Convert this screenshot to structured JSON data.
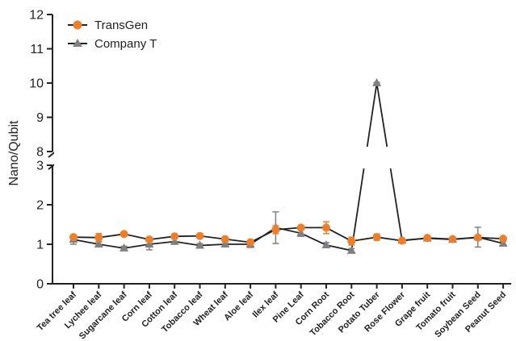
{
  "chart_data": {
    "type": "line",
    "ylabel": "Nano/Qubit",
    "xlabel": "",
    "title": "",
    "axis_break": [
      3,
      8
    ],
    "ylim": [
      0,
      12
    ],
    "yticks": [
      "0",
      "1",
      "2",
      "3",
      "8",
      "9",
      "10",
      "11",
      "12"
    ],
    "legend_position": "top-left",
    "categories": [
      "Tea tree leaf",
      "Lychee leaf",
      "Sugarcane leaf",
      "Corn leaf",
      "Cotton leaf",
      "Tobacco leaf",
      "Wheat leaf",
      "Aloe leaf",
      "Ilex leaf",
      "Pine Leaf",
      "Corn Root",
      "Tobacco Root",
      "Potato Tuber",
      "Rose Flower",
      "Grape fruit",
      "Tomato fruit",
      "Soybean Seed",
      "Peanut Seed"
    ],
    "series": [
      {
        "name": "TransGen",
        "color": "#f07e26",
        "marker": "circle",
        "values": [
          1.18,
          1.17,
          1.26,
          1.12,
          1.2,
          1.21,
          1.13,
          1.05,
          1.37,
          1.42,
          1.42,
          1.08,
          1.18,
          1.09,
          1.16,
          1.13,
          1.17,
          1.14
        ],
        "errors": [
          0.06,
          0.1,
          0.05,
          0.05,
          0.04,
          0.03,
          0.03,
          0.04,
          0.1,
          0.05,
          0.15,
          0.1,
          0.08,
          0.03,
          0.03,
          0.03,
          0.05,
          0.03
        ]
      },
      {
        "name": "Company T",
        "color": "#808080",
        "marker": "triangle",
        "values": [
          1.12,
          1.0,
          0.9,
          1.0,
          1.07,
          0.97,
          1.0,
          1.0,
          1.42,
          1.28,
          0.98,
          0.84,
          10.0,
          1.1,
          1.15,
          1.12,
          1.18,
          1.02
        ],
        "errors": [
          0.12,
          0.06,
          0.05,
          0.14,
          0.07,
          0.05,
          0.05,
          0.08,
          0.4,
          0.08,
          0.06,
          0.05,
          0.02,
          0.03,
          0.03,
          0.04,
          0.25,
          0.05
        ]
      }
    ]
  }
}
